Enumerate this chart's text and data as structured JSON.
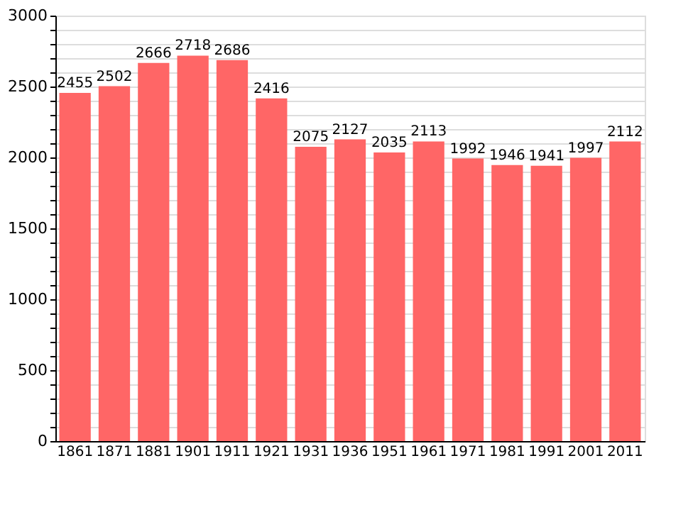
{
  "chart_data": {
    "type": "bar",
    "categories": [
      "1861",
      "1871",
      "1881",
      "1901",
      "1911",
      "1921",
      "1931",
      "1936",
      "1951",
      "1961",
      "1971",
      "1981",
      "1991",
      "2001",
      "2011"
    ],
    "values": [
      2455,
      2502,
      2666,
      2718,
      2686,
      2416,
      2075,
      2127,
      2035,
      2113,
      1992,
      1946,
      1941,
      1997,
      2112
    ],
    "color": "#ff6666",
    "ylim": [
      0,
      3000
    ],
    "yticks": [
      0,
      {
        "value": 100,
        "label": null
      },
      {
        "value": 200,
        "label": null
      },
      {
        "value": 300,
        "label": null
      },
      {
        "value": 400,
        "label": null
      },
      500,
      {
        "value": 600,
        "label": null
      },
      {
        "value": 700,
        "label": null
      },
      {
        "value": 800,
        "label": null
      },
      {
        "value": 900,
        "label": null
      },
      1000,
      {
        "value": 1100,
        "label": null
      },
      {
        "value": 1200,
        "label": null
      },
      {
        "value": 1300,
        "label": null
      },
      {
        "value": 1400,
        "label": null
      },
      1500,
      {
        "value": 1600,
        "label": null
      },
      {
        "value": 1700,
        "label": null
      },
      {
        "value": 1800,
        "label": null
      },
      {
        "value": 1900,
        "label": null
      },
      2000,
      {
        "value": 2100,
        "label": null
      },
      {
        "value": 2200,
        "label": null
      },
      {
        "value": 2300,
        "label": null
      },
      {
        "value": 2400,
        "label": null
      },
      2500,
      {
        "value": 2600,
        "label": null
      },
      {
        "value": 2700,
        "label": null
      },
      {
        "value": 2800,
        "label": null
      },
      {
        "value": 2900,
        "label": null
      },
      3000
    ],
    "grid": "y",
    "data_labels": true
  }
}
